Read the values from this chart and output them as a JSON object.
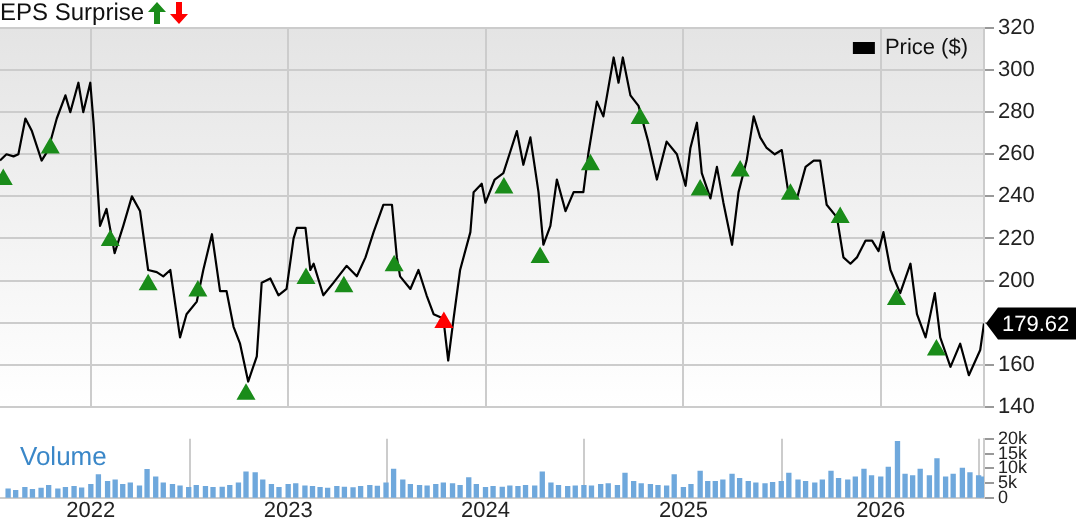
{
  "chart_data": [
    {
      "type": "line",
      "legend_title": "EPS Surprise",
      "legend": "top right",
      "grid": true,
      "tick_labels": "y",
      "xlim": [
        "2021-07-17",
        "2026-07-11"
      ],
      "xticks": [
        "2022",
        "2023",
        "2024",
        "2025",
        "2026"
      ],
      "ylim": [
        140,
        320
      ],
      "yticks": [
        140,
        160,
        {
          "value": 180,
          "label": null
        },
        200,
        220,
        240,
        260,
        280,
        300,
        320
      ],
      "annotations": [
        {
          "text": "179.62",
          "x": "2026-07-11",
          "y": 179.62
        }
      ],
      "series": [
        {
          "name": "Price ($)",
          "type": "line",
          "color": "#000000",
          "x": [
            "2021-07-17",
            "2021-07-29",
            "2021-08-11",
            "2021-08-20",
            "2021-09-02",
            "2021-09-14",
            "2021-10-02",
            "2021-10-14",
            "2021-10-30",
            "2021-11-15",
            "2021-11-24",
            "2021-12-09",
            "2021-12-18",
            "2021-12-31",
            "2022-01-06",
            "2022-01-18",
            "2022-01-30",
            "2022-02-14",
            "2022-03-02",
            "2022-03-18",
            "2022-04-02",
            "2022-04-17",
            "2022-05-03",
            "2022-05-15",
            "2022-05-28",
            "2022-06-15",
            "2022-06-27",
            "2022-07-16",
            "2022-07-28",
            "2022-08-13",
            "2022-08-28",
            "2022-09-09",
            "2022-09-22",
            "2022-10-04",
            "2022-10-19",
            "2022-11-04",
            "2022-11-13",
            "2022-11-29",
            "2022-12-14",
            "2022-12-29",
            "2023-01-11",
            "2023-01-17",
            "2023-02-02",
            "2023-02-11",
            "2023-02-17",
            "2023-03-07",
            "2023-03-26",
            "2023-04-19",
            "2023-05-08",
            "2023-05-24",
            "2023-06-08",
            "2023-06-26",
            "2023-07-12",
            "2023-07-21",
            "2023-07-27",
            "2023-08-15",
            "2023-08-30",
            "2023-09-14",
            "2023-09-27",
            "2023-10-15",
            "2023-10-24",
            "2023-11-03",
            "2023-11-15",
            "2023-12-04",
            "2023-12-10",
            "2023-12-25",
            "2024-01-01",
            "2024-01-18",
            "2024-02-03",
            "2024-02-28",
            "2024-03-11",
            "2024-03-24",
            "2024-04-08",
            "2024-04-17",
            "2024-04-30",
            "2024-05-12",
            "2024-05-28",
            "2024-06-12",
            "2024-06-30",
            "2024-07-09",
            "2024-07-25",
            "2024-08-06",
            "2024-08-25",
            "2024-09-03",
            "2024-09-11",
            "2024-09-25",
            "2024-10-10",
            "2024-10-28",
            "2024-11-13",
            "2024-12-01",
            "2024-12-20",
            "2025-01-05",
            "2025-01-14",
            "2025-01-26",
            "2025-02-04",
            "2025-02-20",
            "2025-03-04",
            "2025-03-16",
            "2025-04-01",
            "2025-04-13",
            "2025-04-28",
            "2025-05-11",
            "2025-05-23",
            "2025-06-04",
            "2025-06-19",
            "2025-07-02",
            "2025-07-14",
            "2025-07-30",
            "2025-08-15",
            "2025-08-30",
            "2025-09-11",
            "2025-09-23",
            "2025-10-12",
            "2025-10-24",
            "2025-11-06",
            "2025-11-18",
            "2025-12-04",
            "2025-12-16",
            "2025-12-28",
            "2026-01-06",
            "2026-01-19",
            "2026-02-06",
            "2026-02-25",
            "2026-03-09",
            "2026-03-25",
            "2026-04-11",
            "2026-04-21",
            "2026-05-10",
            "2026-05-28",
            "2026-06-13",
            "2026-07-04",
            "2026-07-11"
          ],
          "values": [
            257,
            260,
            259,
            260,
            277,
            271,
            257,
            262,
            277,
            288,
            280,
            294,
            280,
            294,
            275,
            226,
            234,
            213,
            226,
            240,
            233,
            205,
            204,
            202,
            205,
            173,
            184,
            190,
            205,
            222,
            195,
            195,
            178,
            170,
            152,
            164,
            199,
            201,
            193,
            196,
            220,
            225,
            225,
            205,
            208,
            193,
            199,
            207,
            202,
            211,
            223,
            236,
            236,
            211,
            202,
            196,
            205,
            193,
            184,
            182,
            162,
            182,
            205,
            223,
            242,
            246,
            237,
            248,
            251,
            271,
            255,
            268,
            242,
            217,
            226,
            248,
            233,
            242,
            242,
            260,
            285,
            278,
            306,
            294,
            306,
            288,
            283,
            266,
            248,
            266,
            260,
            245,
            263,
            275,
            251,
            239,
            254,
            237,
            217,
            242,
            257,
            278,
            268,
            263,
            260,
            262,
            242,
            239,
            254,
            257,
            257,
            236,
            230,
            211,
            208,
            211,
            219,
            219,
            214,
            223,
            205,
            194,
            208,
            184,
            173,
            194,
            173,
            159,
            170,
            155,
            167,
            179.62
          ]
        },
        {
          "type": "scatter",
          "marker": "triangle",
          "color": "#1a8c1a",
          "x": [
            "2021-07-23",
            "2021-10-18",
            "2022-02-06",
            "2022-04-17",
            "2022-07-18",
            "2022-10-15",
            "2023-02-03",
            "2023-04-14",
            "2023-07-16",
            "2024-02-04",
            "2024-04-11",
            "2024-07-13",
            "2024-10-13",
            "2025-02-01",
            "2025-04-16",
            "2025-07-18",
            "2025-10-18",
            "2026-01-30",
            "2026-04-14"
          ],
          "values": [
            248,
            263,
            219,
            198,
            195,
            146,
            201,
            197,
            207,
            244,
            211,
            255,
            277,
            243,
            252,
            241,
            230,
            191,
            167
          ]
        },
        {
          "type": "scatter",
          "marker": "triangle",
          "color": "#ff0000",
          "x": [
            "2023-10-16"
          ],
          "values": [
            180
          ]
        }
      ]
    },
    {
      "type": "bar",
      "title": "Volume",
      "grid": "x",
      "color": "#6fa8dc",
      "xlim": [
        "2021-07-17",
        "2026-07-11"
      ],
      "xticks": [
        "2022",
        "2023",
        "2024",
        "2025",
        "2026"
      ],
      "ylim": [
        0,
        20000
      ],
      "yticks": [
        0,
        {
          "value": 5000,
          "label": "5k"
        },
        {
          "value": 10000,
          "label": "10k"
        },
        {
          "value": 15000,
          "label": "15k"
        },
        {
          "value": 20000,
          "label": "20k"
        }
      ],
      "x": [
        "2021-08-01",
        "2021-08-15",
        "2021-09-01",
        "2021-09-15",
        "2021-10-01",
        "2021-10-15",
        "2021-11-01",
        "2021-11-15",
        "2021-12-01",
        "2021-12-15",
        "2022-01-01",
        "2022-01-15",
        "2022-02-01",
        "2022-02-15",
        "2022-03-01",
        "2022-03-15",
        "2022-04-01",
        "2022-04-15",
        "2022-05-01",
        "2022-05-15",
        "2022-06-01",
        "2022-06-15",
        "2022-07-01",
        "2022-07-15",
        "2022-08-01",
        "2022-08-15",
        "2022-09-01",
        "2022-09-15",
        "2022-10-01",
        "2022-10-15",
        "2022-11-01",
        "2022-11-15",
        "2022-12-01",
        "2022-12-15",
        "2023-01-01",
        "2023-01-15",
        "2023-02-01",
        "2023-02-15",
        "2023-03-01",
        "2023-03-15",
        "2023-04-01",
        "2023-04-15",
        "2023-05-01",
        "2023-05-15",
        "2023-06-01",
        "2023-06-15",
        "2023-07-01",
        "2023-07-15",
        "2023-08-01",
        "2023-08-15",
        "2023-09-01",
        "2023-09-15",
        "2023-10-01",
        "2023-10-15",
        "2023-11-01",
        "2023-11-15",
        "2023-12-01",
        "2023-12-15",
        "2024-01-01",
        "2024-01-15",
        "2024-02-01",
        "2024-02-15",
        "2024-03-01",
        "2024-03-15",
        "2024-04-01",
        "2024-04-15",
        "2024-05-01",
        "2024-05-15",
        "2024-06-01",
        "2024-06-15",
        "2024-07-01",
        "2024-07-15",
        "2024-08-01",
        "2024-08-15",
        "2024-09-01",
        "2024-09-15",
        "2024-10-01",
        "2024-10-15",
        "2024-11-01",
        "2024-11-15",
        "2024-12-01",
        "2024-12-15",
        "2025-01-01",
        "2025-01-15",
        "2025-02-01",
        "2025-02-15",
        "2025-03-01",
        "2025-03-15",
        "2025-04-01",
        "2025-04-15",
        "2025-05-01",
        "2025-05-15",
        "2025-06-01",
        "2025-06-15",
        "2025-07-01",
        "2025-07-15",
        "2025-08-01",
        "2025-08-15",
        "2025-09-01",
        "2025-09-15",
        "2025-10-01",
        "2025-10-15",
        "2025-11-01",
        "2025-11-15",
        "2025-12-01",
        "2025-12-15",
        "2026-01-01",
        "2026-01-15",
        "2026-02-01",
        "2026-02-15",
        "2026-03-01",
        "2026-03-15",
        "2026-04-01",
        "2026-04-15",
        "2026-05-01",
        "2026-05-15",
        "2026-06-01",
        "2026-06-15",
        "2026-07-01",
        "2026-07-08"
      ],
      "values": [
        3000,
        2500,
        3500,
        2800,
        3200,
        4200,
        3000,
        3500,
        3800,
        3300,
        4500,
        7800,
        5500,
        6000,
        4500,
        5000,
        4000,
        9600,
        7000,
        5000,
        4500,
        4000,
        3500,
        4200,
        3800,
        3500,
        3600,
        4200,
        5000,
        8700,
        8500,
        6000,
        4500,
        3500,
        4500,
        4800,
        4000,
        3800,
        3500,
        3200,
        3800,
        3600,
        3400,
        3800,
        4200,
        3900,
        5000,
        9700,
        6000,
        4500,
        4200,
        4000,
        4500,
        5000,
        4800,
        4200,
        6800,
        4500,
        3500,
        3800,
        3600,
        4000,
        3800,
        4200,
        4000,
        8700,
        5000,
        4200,
        3800,
        4000,
        4200,
        4000,
        4500,
        4800,
        4200,
        8300,
        5500,
        4800,
        4500,
        4200,
        4000,
        7800,
        3500,
        4500,
        9000,
        5500,
        5500,
        6000,
        8000,
        6500,
        5500,
        5000,
        4800,
        5200,
        5500,
        8300,
        6000,
        5500,
        5000,
        6000,
        9000,
        6500,
        6000,
        7000,
        9700,
        7500,
        7000,
        10300,
        19000,
        8000,
        7500,
        9700,
        7500,
        13200,
        7000,
        8000,
        10000,
        8500,
        7500,
        7000
      ]
    }
  ]
}
